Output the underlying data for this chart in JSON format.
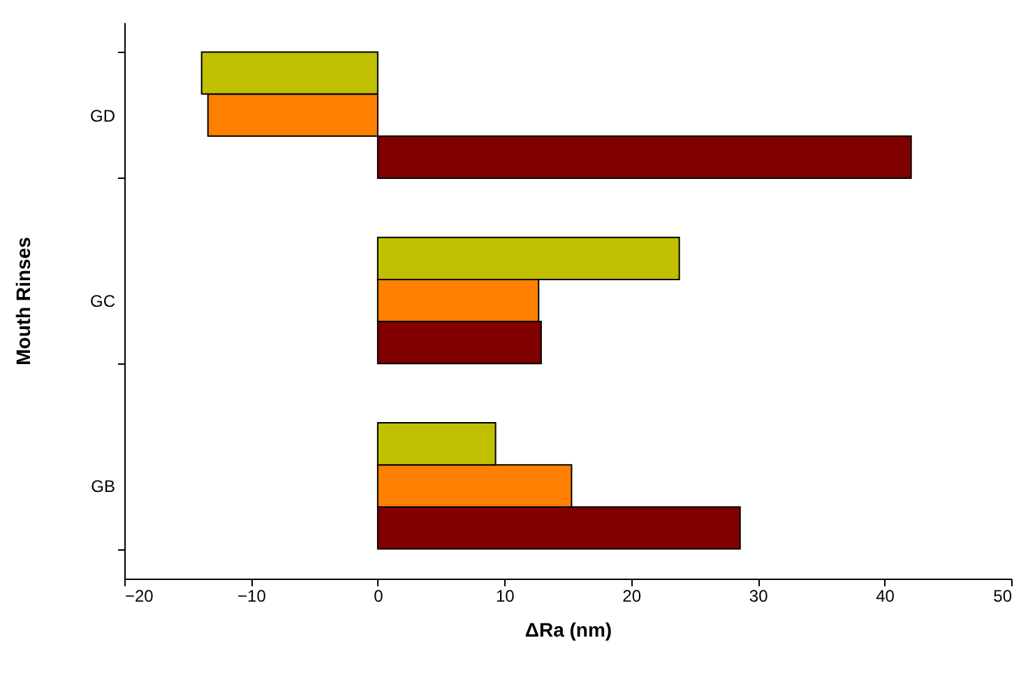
{
  "chart_data": {
    "type": "bar",
    "orientation": "horizontal",
    "xlabel": "ΔRa (nm)",
    "ylabel": "Mouth Rinses",
    "categories": [
      "GD",
      "GC",
      "GB"
    ],
    "series": [
      {
        "color": "#800000",
        "values": [
          42.1,
          12.9,
          28.6
        ]
      },
      {
        "color": "#ff8000",
        "values": [
          -13.4,
          12.7,
          15.3
        ]
      },
      {
        "color": "#c0c000",
        "values": [
          -13.9,
          23.8,
          9.3
        ]
      }
    ],
    "xlim": [
      -20,
      50
    ],
    "xticks": [
      -20,
      -10,
      0,
      10,
      20,
      30,
      40,
      50
    ],
    "grid": false
  }
}
